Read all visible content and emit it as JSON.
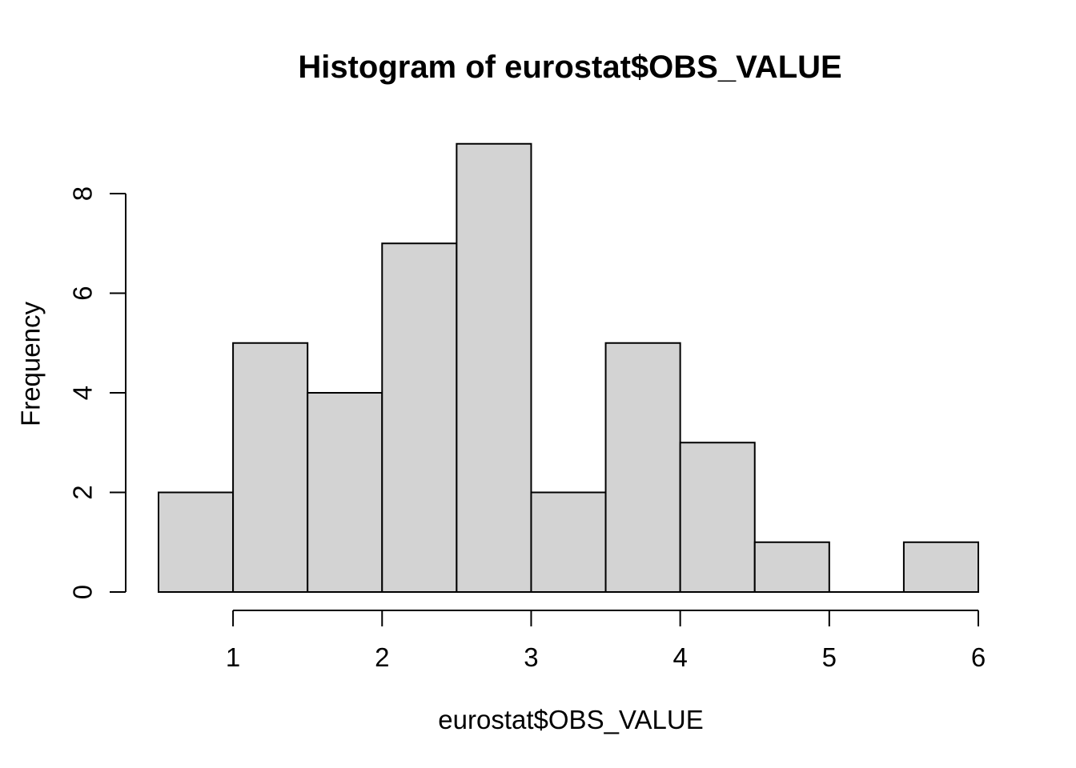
{
  "chart_data": {
    "type": "bar",
    "subtype": "histogram",
    "title": "Histogram of eurostat$OBS_VALUE",
    "xlabel": "eurostat$OBS_VALUE",
    "ylabel": "Frequency",
    "bin_edges": [
      0.5,
      1.0,
      1.5,
      2.0,
      2.5,
      3.0,
      3.5,
      4.0,
      4.5,
      5.0,
      5.5,
      6.0
    ],
    "counts": [
      2,
      5,
      4,
      7,
      9,
      2,
      5,
      3,
      1,
      0,
      1
    ],
    "x_ticks": [
      1,
      2,
      3,
      4,
      5,
      6
    ],
    "y_ticks": [
      0,
      2,
      4,
      6,
      8
    ],
    "xlim": [
      0.5,
      6.0
    ],
    "ylim": [
      0,
      9
    ],
    "grid": false,
    "legend": null,
    "colors": {
      "bar_fill": "#d3d3d3",
      "bar_stroke": "#000000",
      "axis": "#000000",
      "text": "#000000",
      "background": "#ffffff"
    }
  }
}
